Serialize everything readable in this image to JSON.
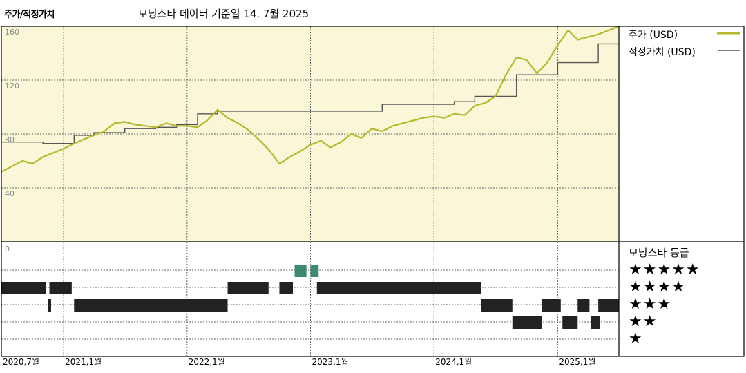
{
  "title": "주가/적정가치",
  "subtitle": "모닝스타 데이터 기준일 14. 7월 2025",
  "chart_data": {
    "type": "line",
    "title": "주가/적정가치",
    "x_start": "2020-07",
    "x_end": "2025-07",
    "x_ticks": [
      {
        "date": "2020-07",
        "label": "2020,7월"
      },
      {
        "date": "2021-01",
        "label": "2021,1월"
      },
      {
        "date": "2022-01",
        "label": "2022,1월"
      },
      {
        "date": "2023-01",
        "label": "2023,1월"
      },
      {
        "date": "2024-01",
        "label": "2024,1월"
      },
      {
        "date": "2025-01",
        "label": "2025,1월"
      }
    ],
    "ylim": [
      0,
      160
    ],
    "y_ticks": [
      40,
      80,
      120,
      160
    ],
    "y_bottom_tick": "0",
    "grid": true,
    "colors": {
      "price": "#b5b82a",
      "fair_value": "#555555",
      "plot_bg": "#faf6d8",
      "rating_green": "#3e8a6e",
      "rating_dark": "#222222"
    },
    "series": [
      {
        "name": "주가 (USD)",
        "key": "price",
        "points": [
          [
            "2020-07-01",
            52
          ],
          [
            "2020-08-01",
            56
          ],
          [
            "2020-09-01",
            60
          ],
          [
            "2020-10-01",
            58
          ],
          [
            "2020-11-01",
            63
          ],
          [
            "2020-12-01",
            66
          ],
          [
            "2021-01-01",
            69
          ],
          [
            "2021-02-01",
            73
          ],
          [
            "2021-03-01",
            76
          ],
          [
            "2021-04-01",
            79
          ],
          [
            "2021-05-01",
            82
          ],
          [
            "2021-06-01",
            88
          ],
          [
            "2021-07-01",
            89
          ],
          [
            "2021-08-01",
            87
          ],
          [
            "2021-09-01",
            86
          ],
          [
            "2021-10-01",
            85
          ],
          [
            "2021-11-01",
            88
          ],
          [
            "2021-12-01",
            86
          ],
          [
            "2022-01-01",
            86
          ],
          [
            "2022-02-01",
            85
          ],
          [
            "2022-03-01",
            90
          ],
          [
            "2022-04-01",
            98
          ],
          [
            "2022-05-01",
            92
          ],
          [
            "2022-06-01",
            88
          ],
          [
            "2022-07-01",
            83
          ],
          [
            "2022-08-01",
            76
          ],
          [
            "2022-09-01",
            68
          ],
          [
            "2022-10-01",
            58
          ],
          [
            "2022-11-01",
            63
          ],
          [
            "2022-12-01",
            67
          ],
          [
            "2023-01-01",
            72
          ],
          [
            "2023-02-01",
            75
          ],
          [
            "2023-03-01",
            70
          ],
          [
            "2023-04-01",
            74
          ],
          [
            "2023-05-01",
            80
          ],
          [
            "2023-06-01",
            77
          ],
          [
            "2023-07-01",
            84
          ],
          [
            "2023-08-01",
            82
          ],
          [
            "2023-09-01",
            86
          ],
          [
            "2023-10-01",
            88
          ],
          [
            "2023-11-01",
            90
          ],
          [
            "2023-12-01",
            92
          ],
          [
            "2024-01-01",
            93
          ],
          [
            "2024-02-01",
            92
          ],
          [
            "2024-03-01",
            95
          ],
          [
            "2024-04-01",
            94
          ],
          [
            "2024-05-01",
            101
          ],
          [
            "2024-06-01",
            103
          ],
          [
            "2024-07-01",
            108
          ],
          [
            "2024-08-01",
            124
          ],
          [
            "2024-09-01",
            137
          ],
          [
            "2024-10-01",
            135
          ],
          [
            "2024-11-01",
            125
          ],
          [
            "2024-12-01",
            133
          ],
          [
            "2025-01-01",
            146
          ],
          [
            "2025-02-01",
            157
          ],
          [
            "2025-03-01",
            150
          ],
          [
            "2025-04-01",
            152
          ],
          [
            "2025-05-01",
            154
          ],
          [
            "2025-06-01",
            157
          ],
          [
            "2025-07-01",
            160
          ]
        ]
      },
      {
        "name": "적정가치 (USD)",
        "key": "fair_value",
        "step": true,
        "points": [
          [
            "2020-07-01",
            74
          ],
          [
            "2020-11-01",
            73
          ],
          [
            "2021-02-01",
            79
          ],
          [
            "2021-04-01",
            81
          ],
          [
            "2021-07-01",
            84
          ],
          [
            "2021-10-01",
            85
          ],
          [
            "2021-12-01",
            87
          ],
          [
            "2022-02-01",
            95
          ],
          [
            "2022-04-01",
            97
          ],
          [
            "2023-02-01",
            97
          ],
          [
            "2023-08-01",
            102
          ],
          [
            "2024-03-01",
            104
          ],
          [
            "2024-05-01",
            108
          ],
          [
            "2024-09-01",
            124
          ],
          [
            "2025-01-01",
            133
          ],
          [
            "2025-05-01",
            147
          ],
          [
            "2025-07-01",
            147
          ]
        ]
      }
    ],
    "legend": {
      "placement": "right"
    },
    "star_ratings": {
      "label": "모닝스타 등급",
      "rows": [
        {
          "stars": 5,
          "label": "★★★★★",
          "periods": [
            [
              "2022-11-15",
              "2022-12-20"
            ],
            [
              "2023-01-01",
              "2023-01-25"
            ]
          ]
        },
        {
          "stars": 4,
          "label": "★★★★",
          "periods": [
            [
              "2020-07-01",
              "2020-11-10"
            ],
            [
              "2020-11-20",
              "2021-01-25"
            ],
            [
              "2022-05-01",
              "2022-08-30"
            ],
            [
              "2022-10-01",
              "2022-11-10"
            ],
            [
              "2023-01-20",
              "2024-05-20"
            ]
          ]
        },
        {
          "stars": 3,
          "label": "★★★",
          "periods": [
            [
              "2020-11-15",
              "2020-11-25"
            ],
            [
              "2021-02-01",
              "2022-05-01"
            ],
            [
              "2024-05-20",
              "2024-08-20"
            ],
            [
              "2024-11-15",
              "2025-01-10"
            ],
            [
              "2025-03-01",
              "2025-04-05"
            ],
            [
              "2025-05-01",
              "2025-07-01"
            ]
          ]
        },
        {
          "stars": 2,
          "label": "★★",
          "periods": [
            [
              "2024-08-20",
              "2024-11-15"
            ],
            [
              "2025-01-15",
              "2025-03-01"
            ],
            [
              "2025-04-10",
              "2025-05-05"
            ]
          ]
        },
        {
          "stars": 1,
          "label": "★",
          "periods": []
        }
      ]
    }
  }
}
